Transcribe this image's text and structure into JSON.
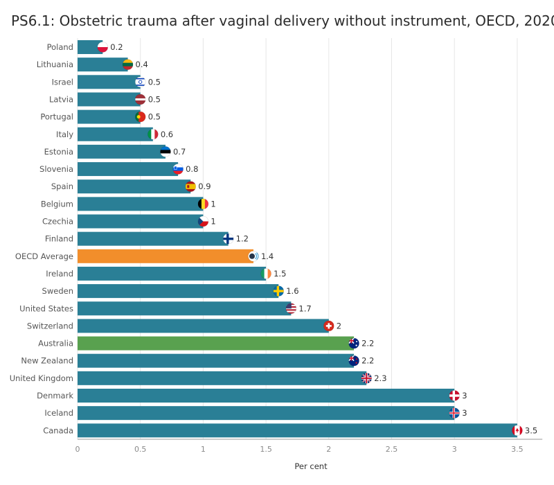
{
  "title": "PS6.1: Obstetric trauma after vaginal delivery without instrument, OECD, 2020",
  "chart_data": {
    "type": "bar",
    "orientation": "horizontal",
    "title": "PS6.1: Obstetric trauma after vaginal delivery without instrument, OECD, 2020",
    "xlabel": "Per cent",
    "ylabel": "",
    "xlim": [
      0,
      3.7
    ],
    "xticks": [
      0,
      0.5,
      1,
      1.5,
      2,
      2.5,
      3,
      3.5
    ],
    "xtick_labels": [
      "0",
      "0.5",
      "1",
      "1.5",
      "2",
      "2.5",
      "3",
      "3.5"
    ],
    "grid": "vertical",
    "legend": "none",
    "categories": [
      "Poland",
      "Lithuania",
      "Israel",
      "Latvia",
      "Portugal",
      "Italy",
      "Estonia",
      "Slovenia",
      "Spain",
      "Belgium",
      "Czechia",
      "Finland",
      "OECD Average",
      "Ireland",
      "Sweden",
      "United States",
      "Switzerland",
      "Australia",
      "New Zealand",
      "United Kingdom",
      "Denmark",
      "Iceland",
      "Canada"
    ],
    "values": [
      0.2,
      0.4,
      0.5,
      0.5,
      0.5,
      0.6,
      0.7,
      0.8,
      0.9,
      1,
      1,
      1.2,
      1.4,
      1.5,
      1.6,
      1.7,
      2,
      2.2,
      2.2,
      2.3,
      3,
      3,
      3.5
    ],
    "value_labels": [
      "0.2",
      "0.4",
      "0.5",
      "0.5",
      "0.5",
      "0.6",
      "0.7",
      "0.8",
      "0.9",
      "1",
      "1",
      "1.2",
      "1.4",
      "1.5",
      "1.6",
      "1.7",
      "2",
      "2.2",
      "2.2",
      "2.3",
      "3",
      "3",
      "3.5"
    ],
    "flag_icons": [
      "flag-poland",
      "flag-lithuania",
      "flag-israel",
      "flag-latvia",
      "flag-portugal",
      "flag-italy",
      "flag-estonia",
      "flag-slovenia",
      "flag-spain",
      "flag-belgium",
      "flag-czechia",
      "flag-finland",
      "oecd-logo",
      "flag-ireland",
      "flag-sweden",
      "flag-united-states",
      "flag-switzerland",
      "flag-australia",
      "flag-new-zealand",
      "flag-united-kingdom",
      "flag-denmark",
      "flag-iceland",
      "flag-canada"
    ],
    "highlight": {
      "OECD Average": "#f28e2b",
      "Australia": "#59a14f"
    },
    "colors": {
      "default_bar": "#2a7f96",
      "gridline": "#e6e6e6",
      "axis": "#999999"
    }
  }
}
